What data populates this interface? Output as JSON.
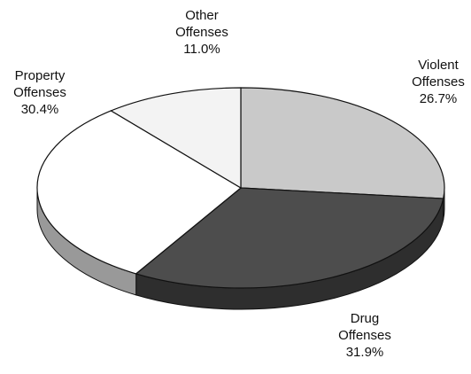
{
  "chart_data": {
    "type": "pie",
    "categories": [
      "Violent Offenses",
      "Drug Offenses",
      "Property Offenses",
      "Other Offenses"
    ],
    "values": [
      26.7,
      31.9,
      30.4,
      11.0
    ],
    "value_labels": [
      "26.7%",
      "31.9%",
      "30.4%",
      "11.0%"
    ],
    "colors": [
      "#c9c9c9",
      "#4d4d4d",
      "#ffffff",
      "#f3f3f3"
    ]
  }
}
